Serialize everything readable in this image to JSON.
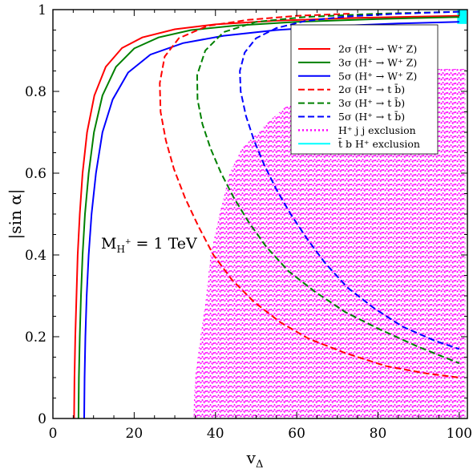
{
  "chart_data": {
    "type": "line",
    "title": "",
    "xlabel": "v",
    "xlabel_sub": "Δ",
    "ylabel": "|sin α|",
    "xlim": [
      0,
      102
    ],
    "ylim": [
      0,
      1
    ],
    "xticks": [
      0,
      20,
      40,
      60,
      80,
      100
    ],
    "yticks": [
      0,
      0.2,
      0.4,
      0.6,
      0.8,
      1
    ],
    "grid": false,
    "legend_position": "top-right",
    "annotation": {
      "main": "M",
      "sub": "H",
      "sup": "+",
      "rest": " = 1 TeV"
    },
    "series": [
      {
        "name": "2σ (H⁺ → W⁺ Z)",
        "color": "#ff0000",
        "style": "solid",
        "points": [
          [
            5.2,
            0
          ],
          [
            5.3,
            0.1
          ],
          [
            5.5,
            0.2
          ],
          [
            5.8,
            0.3
          ],
          [
            6.1,
            0.4
          ],
          [
            6.6,
            0.5
          ],
          [
            7.3,
            0.6
          ],
          [
            8.4,
            0.7
          ],
          [
            10.2,
            0.79
          ],
          [
            13,
            0.86
          ],
          [
            17,
            0.906
          ],
          [
            22,
            0.932
          ],
          [
            30,
            0.952
          ],
          [
            40,
            0.964
          ],
          [
            55,
            0.973
          ],
          [
            75,
            0.98
          ],
          [
            100,
            0.985
          ]
        ]
      },
      {
        "name": "3σ (H⁺ → W⁺ Z)",
        "color": "#008000",
        "style": "solid",
        "points": [
          [
            6.3,
            0
          ],
          [
            6.4,
            0.1
          ],
          [
            6.6,
            0.2
          ],
          [
            6.9,
            0.3
          ],
          [
            7.3,
            0.4
          ],
          [
            7.9,
            0.5
          ],
          [
            8.8,
            0.6
          ],
          [
            10.1,
            0.7
          ],
          [
            12.2,
            0.79
          ],
          [
            15.5,
            0.86
          ],
          [
            20,
            0.905
          ],
          [
            26,
            0.932
          ],
          [
            34,
            0.95
          ],
          [
            45,
            0.961
          ],
          [
            60,
            0.97
          ],
          [
            80,
            0.977
          ],
          [
            100,
            0.982
          ]
        ]
      },
      {
        "name": "5σ (H⁺ → W⁺ Z)",
        "color": "#0000ff",
        "style": "solid",
        "points": [
          [
            7.7,
            0
          ],
          [
            7.8,
            0.1
          ],
          [
            8,
            0.2
          ],
          [
            8.3,
            0.3
          ],
          [
            8.8,
            0.4
          ],
          [
            9.5,
            0.5
          ],
          [
            10.6,
            0.6
          ],
          [
            12.2,
            0.7
          ],
          [
            14.7,
            0.78
          ],
          [
            18.5,
            0.846
          ],
          [
            24,
            0.89
          ],
          [
            32,
            0.918
          ],
          [
            42,
            0.936
          ],
          [
            55,
            0.95
          ],
          [
            70,
            0.96
          ],
          [
            85,
            0.966
          ],
          [
            100,
            0.97
          ]
        ]
      },
      {
        "name": "2σ (H⁺ → t b̄)",
        "color": "#ff0000",
        "style": "dashed",
        "points": [
          [
            73,
            0.99
          ],
          [
            60,
            0.985
          ],
          [
            48,
            0.975
          ],
          [
            38,
            0.96
          ],
          [
            31,
            0.93
          ],
          [
            27.5,
            0.885
          ],
          [
            26.3,
            0.82
          ],
          [
            26.5,
            0.75
          ],
          [
            27.8,
            0.68
          ],
          [
            29.8,
            0.61
          ],
          [
            32.5,
            0.54
          ],
          [
            35.8,
            0.47
          ],
          [
            39.5,
            0.4
          ],
          [
            44,
            0.34
          ],
          [
            49.5,
            0.285
          ],
          [
            56,
            0.235
          ],
          [
            63,
            0.195
          ],
          [
            72,
            0.16
          ],
          [
            82,
            0.128
          ],
          [
            92,
            0.11
          ],
          [
            100,
            0.1
          ]
        ]
      },
      {
        "name": "3σ (H⁺ → t b̄)",
        "color": "#008000",
        "style": "dashed",
        "points": [
          [
            100,
            0.995
          ],
          [
            80,
            0.99
          ],
          [
            62,
            0.982
          ],
          [
            50,
            0.97
          ],
          [
            42,
            0.945
          ],
          [
            37.5,
            0.9
          ],
          [
            35.5,
            0.84
          ],
          [
            35.6,
            0.78
          ],
          [
            36.8,
            0.72
          ],
          [
            38.8,
            0.66
          ],
          [
            41.4,
            0.6
          ],
          [
            44.5,
            0.54
          ],
          [
            48.2,
            0.48
          ],
          [
            52.5,
            0.42
          ],
          [
            58,
            0.36
          ],
          [
            64.5,
            0.31
          ],
          [
            72,
            0.26
          ],
          [
            80,
            0.22
          ],
          [
            90,
            0.175
          ],
          [
            100,
            0.135
          ]
        ]
      },
      {
        "name": "5σ (H⁺ → t b̄)",
        "color": "#0000ff",
        "style": "dashed",
        "points": [
          [
            100,
            0.995
          ],
          [
            85,
            0.99
          ],
          [
            72,
            0.983
          ],
          [
            62,
            0.972
          ],
          [
            55,
            0.955
          ],
          [
            50,
            0.93
          ],
          [
            47.2,
            0.895
          ],
          [
            46,
            0.85
          ],
          [
            46.2,
            0.8
          ],
          [
            47.5,
            0.74
          ],
          [
            49.5,
            0.68
          ],
          [
            52,
            0.62
          ],
          [
            55,
            0.56
          ],
          [
            58.5,
            0.5
          ],
          [
            62.5,
            0.44
          ],
          [
            67,
            0.38
          ],
          [
            72.5,
            0.32
          ],
          [
            79,
            0.27
          ],
          [
            86,
            0.225
          ],
          [
            94,
            0.19
          ],
          [
            100,
            0.17
          ]
        ]
      },
      {
        "name": "H⁺ j j exclusion",
        "color": "#ff00ff",
        "style": "dotted",
        "region": {
          "bottom": 0,
          "top": 0.855,
          "left_boundary": [
            [
              34.5,
              0
            ],
            [
              35,
              0.1
            ],
            [
              36.3,
              0.2
            ],
            [
              37.5,
              0.28
            ],
            [
              38.8,
              0.4
            ],
            [
              41,
              0.5
            ],
            [
              43.5,
              0.6
            ],
            [
              46.5,
              0.66
            ],
            [
              50.5,
              0.7
            ],
            [
              53.5,
              0.73
            ],
            [
              57,
              0.76
            ],
            [
              62,
              0.785
            ],
            [
              68,
              0.81
            ],
            [
              74,
              0.83
            ],
            [
              80,
              0.845
            ],
            [
              86,
              0.855
            ]
          ],
          "right_edge": 101.5
        }
      },
      {
        "name": "t̄ b H⁺ exclusion",
        "color": "#00ffff",
        "style": "solid",
        "region": {
          "x_range": [
            99.5,
            101.8
          ],
          "y_range": [
            0.965,
            1
          ]
        }
      }
    ]
  }
}
